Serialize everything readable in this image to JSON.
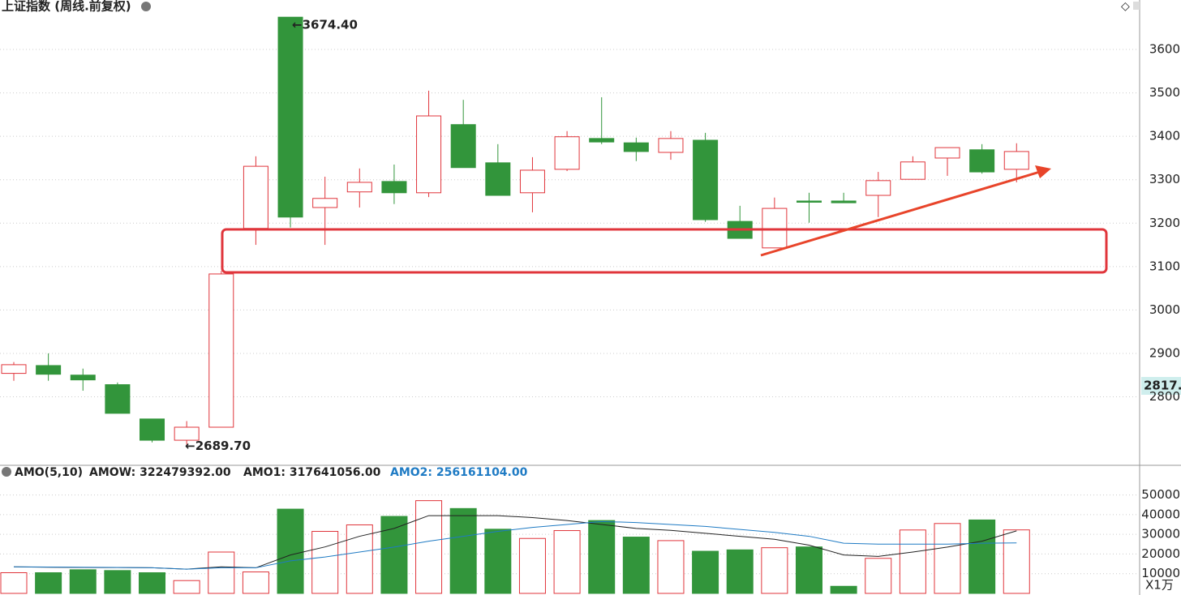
{
  "chart_data": [
    {
      "type": "candlestick",
      "title": "上证指数 (周线.前复权)",
      "current_label": "2817.",
      "up_color": "#e0353b",
      "down_color": "#32953b",
      "open": [
        2854,
        2872,
        2850,
        2828,
        2749,
        2700,
        2730,
        3188,
        3674.4,
        3236,
        3272,
        3296,
        3270,
        3427,
        3339,
        3270,
        3324,
        3395,
        3385,
        3363,
        3391,
        3204,
        3143,
        3251,
        3251,
        3264,
        3301,
        3350,
        3369,
        3324
      ],
      "high": [
        2880,
        2900,
        2865,
        2833,
        2749,
        2744,
        3090,
        3354,
        3674.4,
        3307,
        3326,
        3335,
        3505,
        3484,
        3382,
        3352,
        3412,
        3490,
        3397,
        3412,
        3408,
        3240,
        3259,
        3270,
        3270,
        3318,
        3354,
        3374,
        3382,
        3384
      ],
      "low": [
        2837,
        2837,
        2814,
        2762,
        2695,
        2689.7,
        2730,
        3150,
        3190,
        3150,
        3236,
        3244,
        3260,
        3328,
        3264,
        3225,
        3320,
        3382,
        3343,
        3346,
        3203,
        3165,
        3143,
        3201,
        3247,
        3214,
        3301,
        3309,
        3314,
        3294
      ],
      "close": [
        2874,
        2852,
        2839,
        2762,
        2700,
        2730,
        3083,
        3331,
        3214,
        3257,
        3294,
        3270,
        3447,
        3328,
        3264,
        3322,
        3399,
        3387,
        3365,
        3395,
        3208,
        3165,
        3234,
        3249,
        3247,
        3298,
        3341,
        3374,
        3318,
        3365
      ],
      "annotations": [
        "3674.40",
        "2689.70"
      ],
      "ylim": [
        2646,
        3714
      ],
      "yticks": [
        2800,
        2900,
        3000,
        3100,
        3200,
        3300,
        3400,
        3500,
        3600
      ],
      "grid": true
    },
    {
      "type": "bar",
      "title": "AMO(5,10)",
      "unit_label": "X1万",
      "header": [
        "AMOW: 322479392.00",
        "AMO1: 317641056.00",
        "AMO2: 256161104.00"
      ],
      "values": [
        10500,
        10500,
        12000,
        11600,
        10500,
        6500,
        21000,
        10900,
        42800,
        31500,
        34800,
        39100,
        47100,
        43100,
        32600,
        27900,
        31900,
        37000,
        28600,
        26800,
        21400,
        22100,
        23200,
        23600,
        3600,
        17800,
        32200,
        35500,
        37300,
        32248
      ],
      "series": [
        {
          "name": "AMO1",
          "color": "#222222",
          "values": [
            13500,
            13300,
            13200,
            13100,
            13000,
            12300,
            13500,
            13000,
            19500,
            23600,
            29000,
            33000,
            39500,
            39500,
            39500,
            38500,
            37000,
            35000,
            33000,
            32000,
            30500,
            29000,
            27500,
            24500,
            19500,
            18800,
            21000,
            23500,
            26500,
            31764
          ]
        },
        {
          "name": "AMO2",
          "color": "#1f7bc4",
          "values": [
            13500,
            13400,
            13300,
            13200,
            13000,
            12300,
            13000,
            13000,
            16500,
            18500,
            21000,
            23500,
            26500,
            29000,
            31500,
            33500,
            35000,
            36500,
            36000,
            35000,
            34000,
            32500,
            31000,
            29000,
            25500,
            25000,
            25000,
            25000,
            25500,
            25616
          ]
        }
      ],
      "ylim": [
        0,
        56000
      ],
      "yticks": [
        10000,
        20000,
        30000,
        40000,
        50000
      ],
      "grid": true
    }
  ]
}
